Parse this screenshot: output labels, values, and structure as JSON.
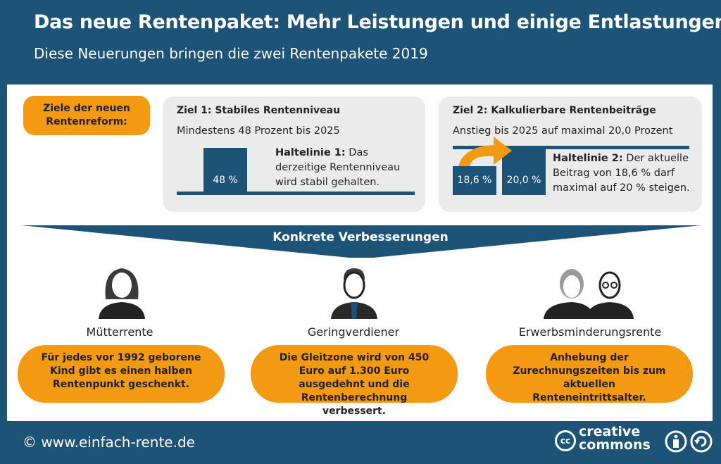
{
  "header": {
    "title": "Das neue Rentenpaket: Mehr Leistungen  und einige Entlastungen",
    "subtitle": "Diese Neuerungen bringen die zwei Rentenpakete 2019"
  },
  "goals": {
    "label": "Ziele der neuen Rentenreform:",
    "goal1": {
      "heading": "Ziel 1: Stabiles Rentenniveau",
      "subheading": "Mindestens 48 Prozent bis 2025",
      "bar_label": "48 %",
      "note_bold": "Haltelinie 1:",
      "note_text": " Das derzeitige Rentenniveau wird stabil gehalten."
    },
    "goal2": {
      "heading": "Ziel 2: Kalkulierbare Rentenbeiträge",
      "subheading": "Anstieg bis 2025 auf maximal 20,0 Prozent",
      "bar1_label": "18,6 %",
      "bar2_label": "20,0 %",
      "note_bold": "Haltelinie 2:",
      "note_text": " Der aktuelle Beitrag von 18,6 % darf maximal auf 20 % steigen."
    }
  },
  "improvements": {
    "heading": "Konkrete Verbesserungen",
    "items": [
      {
        "title": "Mütterrente",
        "text": "Für jedes vor 1992 geborene Kind gibt es einen halben Rentenpunkt geschenkt.",
        "icon": "woman-icon"
      },
      {
        "title": "Geringverdiener",
        "text": "Die Gleitzone wird von 450 Euro auf 1.300 Euro ausgedehnt und die Rentenberechnung verbessert.",
        "icon": "man-with-tie-icon"
      },
      {
        "title": "Erwerbsminderungsrente",
        "text": "Anhebung der Zurechnungszeiten bis zum aktuellen Renteneintrittsalter.",
        "icon": "elderly-couple-icon"
      }
    ]
  },
  "footer": {
    "link": "© www.einfach-rente.de",
    "license_line1": "creative",
    "license_line2": "commons",
    "cc": "cc"
  },
  "colors": {
    "blue": "#1d5377",
    "orange": "#f39a12",
    "gray": "#ebebeb"
  }
}
